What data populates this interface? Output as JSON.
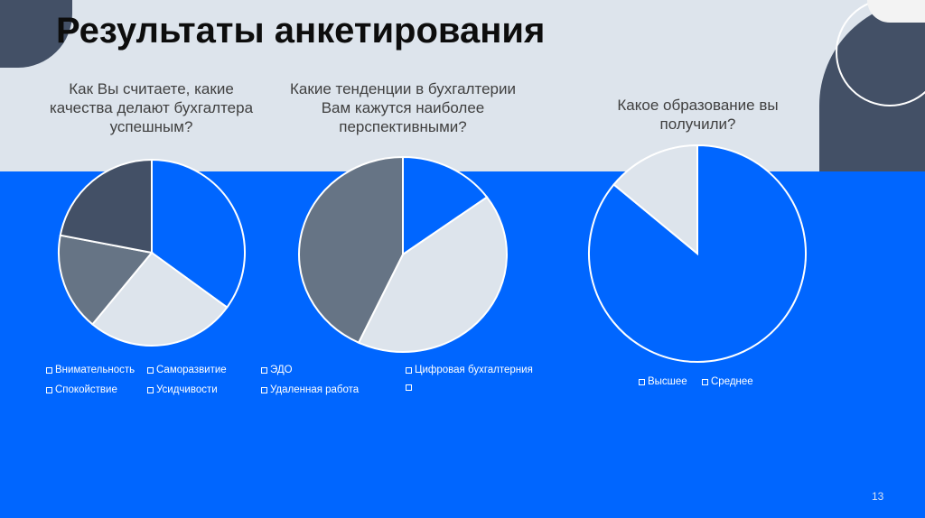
{
  "title": "Результаты анкетирования",
  "page_number": "13",
  "colors": {
    "background": "#dde4ec",
    "band": "#0066ff",
    "dark": "#435066",
    "gray": "#667485",
    "light": "#dde4ec",
    "outline": "#ffffff"
  },
  "chart_data": [
    {
      "type": "pie",
      "title": "Как Вы считаете, какие качества делают бухгалтера успешным?",
      "slices": [
        {
          "label": "Внимательность",
          "value": 35,
          "color": "#0066ff"
        },
        {
          "label": "Саморазвитие",
          "value": 26,
          "color": "#dde4ec"
        },
        {
          "label": "Спокойствие",
          "value": 17,
          "color": "#667485"
        },
        {
          "label": "Усидчивости",
          "value": 22,
          "color": "#435066"
        }
      ],
      "legend": [
        [
          "Внимательность",
          "Саморазвитие"
        ],
        [
          "Спокойствие",
          "Усидчивости"
        ]
      ]
    },
    {
      "type": "pie",
      "title": "Какие тенденции в бухгалтерии Вам кажутся наиболее перспективными?",
      "slices": [
        {
          "label": "ЭДО",
          "value": 15,
          "color": "#0066ff"
        },
        {
          "label": "Цифровая бухгалтерния",
          "value": 42,
          "color": "#dde4ec"
        },
        {
          "label": "Удаленная работа",
          "value": 43,
          "color": "#667485"
        },
        {
          "label": "",
          "value": 0,
          "color": "#435066"
        }
      ],
      "legend": [
        [
          "ЭДО",
          "Цифровая бухгалтерния"
        ],
        [
          "Удаленная работа",
          ""
        ]
      ]
    },
    {
      "type": "pie",
      "title": "Какое образование вы получили?",
      "slices": [
        {
          "label": "Высшее",
          "value": 86,
          "color": "#0066ff"
        },
        {
          "label": "Среднее",
          "value": 14,
          "color": "#dde4ec"
        }
      ],
      "legend": [
        [
          "Высшее",
          "Среднее"
        ]
      ]
    }
  ]
}
